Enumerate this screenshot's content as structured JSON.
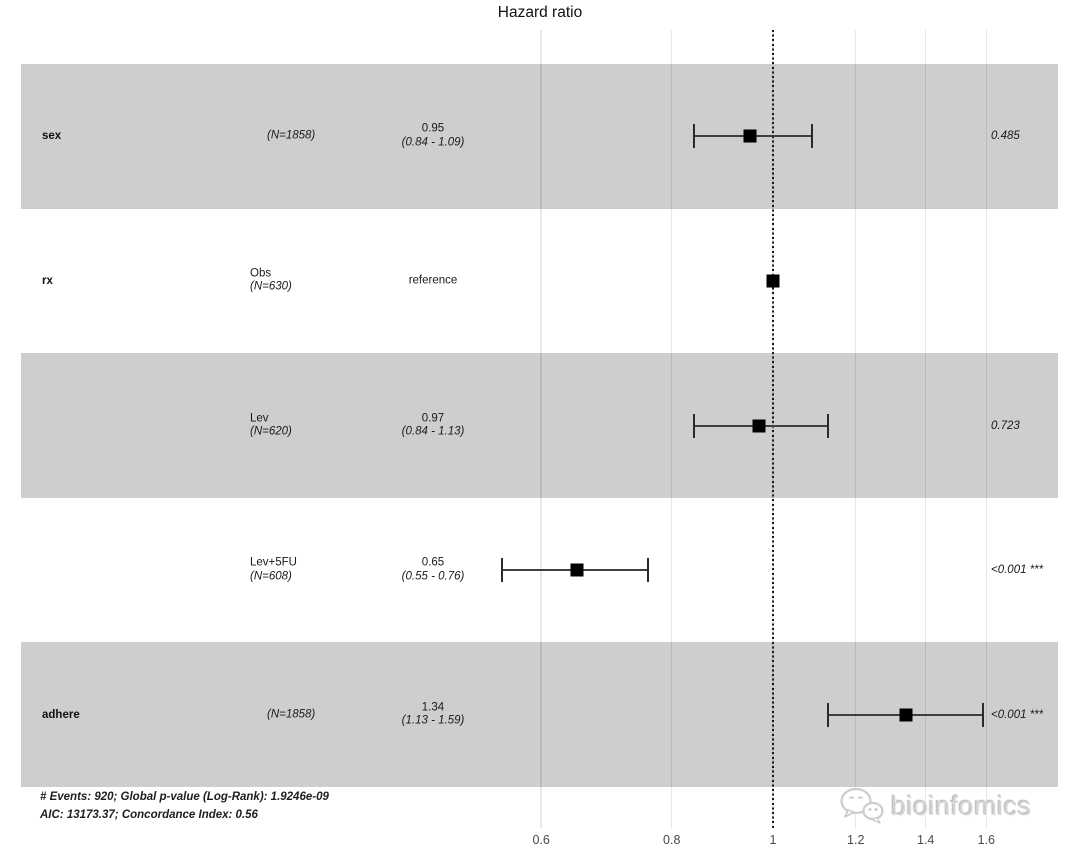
{
  "title": "Hazard ratio",
  "footer": {
    "line1": "# Events: 920; Global p-value (Log-Rank): 1.9246e-09",
    "line2": "AIC: 13173.37; Concordance Index: 0.56"
  },
  "watermark": {
    "text": "bioinfomics",
    "icon": "wechat-chat-bubbles-icon"
  },
  "colors": {
    "band": "#cecece",
    "marker": "#000000",
    "grid": "#dedede",
    "reference_line": "#191919",
    "watermark_gray": "#d2d2d2"
  },
  "chart_data": {
    "type": "forest",
    "title": "Hazard ratio",
    "x_scale": "log",
    "x_tick_labels": [
      "0.6",
      "0.8",
      "1",
      "1.2",
      "1.4",
      "1.6"
    ],
    "x_tick_values": [
      0.6,
      0.8,
      1.0,
      1.2,
      1.4,
      1.6
    ],
    "reference_line": 1,
    "grid": true,
    "rows": [
      {
        "variable": "sex",
        "level": "",
        "n": "(N=1858)",
        "estimate": "0.95",
        "ci_text": "(0.84 - 1.09)",
        "hr": 0.95,
        "lo": 0.84,
        "hi": 1.09,
        "p": "0.485",
        "band": true
      },
      {
        "variable": "rx",
        "level": "Obs",
        "n": "(N=630)",
        "estimate": "reference",
        "ci_text": "",
        "hr": 1.0,
        "lo": null,
        "hi": null,
        "p": "",
        "band": false
      },
      {
        "variable": "",
        "level": "Lev",
        "n": "(N=620)",
        "estimate": "0.97",
        "ci_text": "(0.84 - 1.13)",
        "hr": 0.97,
        "lo": 0.84,
        "hi": 1.13,
        "p": "0.723",
        "band": true
      },
      {
        "variable": "",
        "level": "Lev+5FU",
        "n": "(N=608)",
        "estimate": "0.65",
        "ci_text": "(0.55 - 0.76)",
        "hr": 0.65,
        "lo": 0.55,
        "hi": 0.76,
        "p": "<0.001 ***",
        "band": false
      },
      {
        "variable": "adhere",
        "level": "",
        "n": "(N=1858)",
        "estimate": "1.34",
        "ci_text": "(1.13 - 1.59)",
        "hr": 1.34,
        "lo": 1.13,
        "hi": 1.59,
        "p": "<0.001 ***",
        "band": true
      }
    ]
  }
}
